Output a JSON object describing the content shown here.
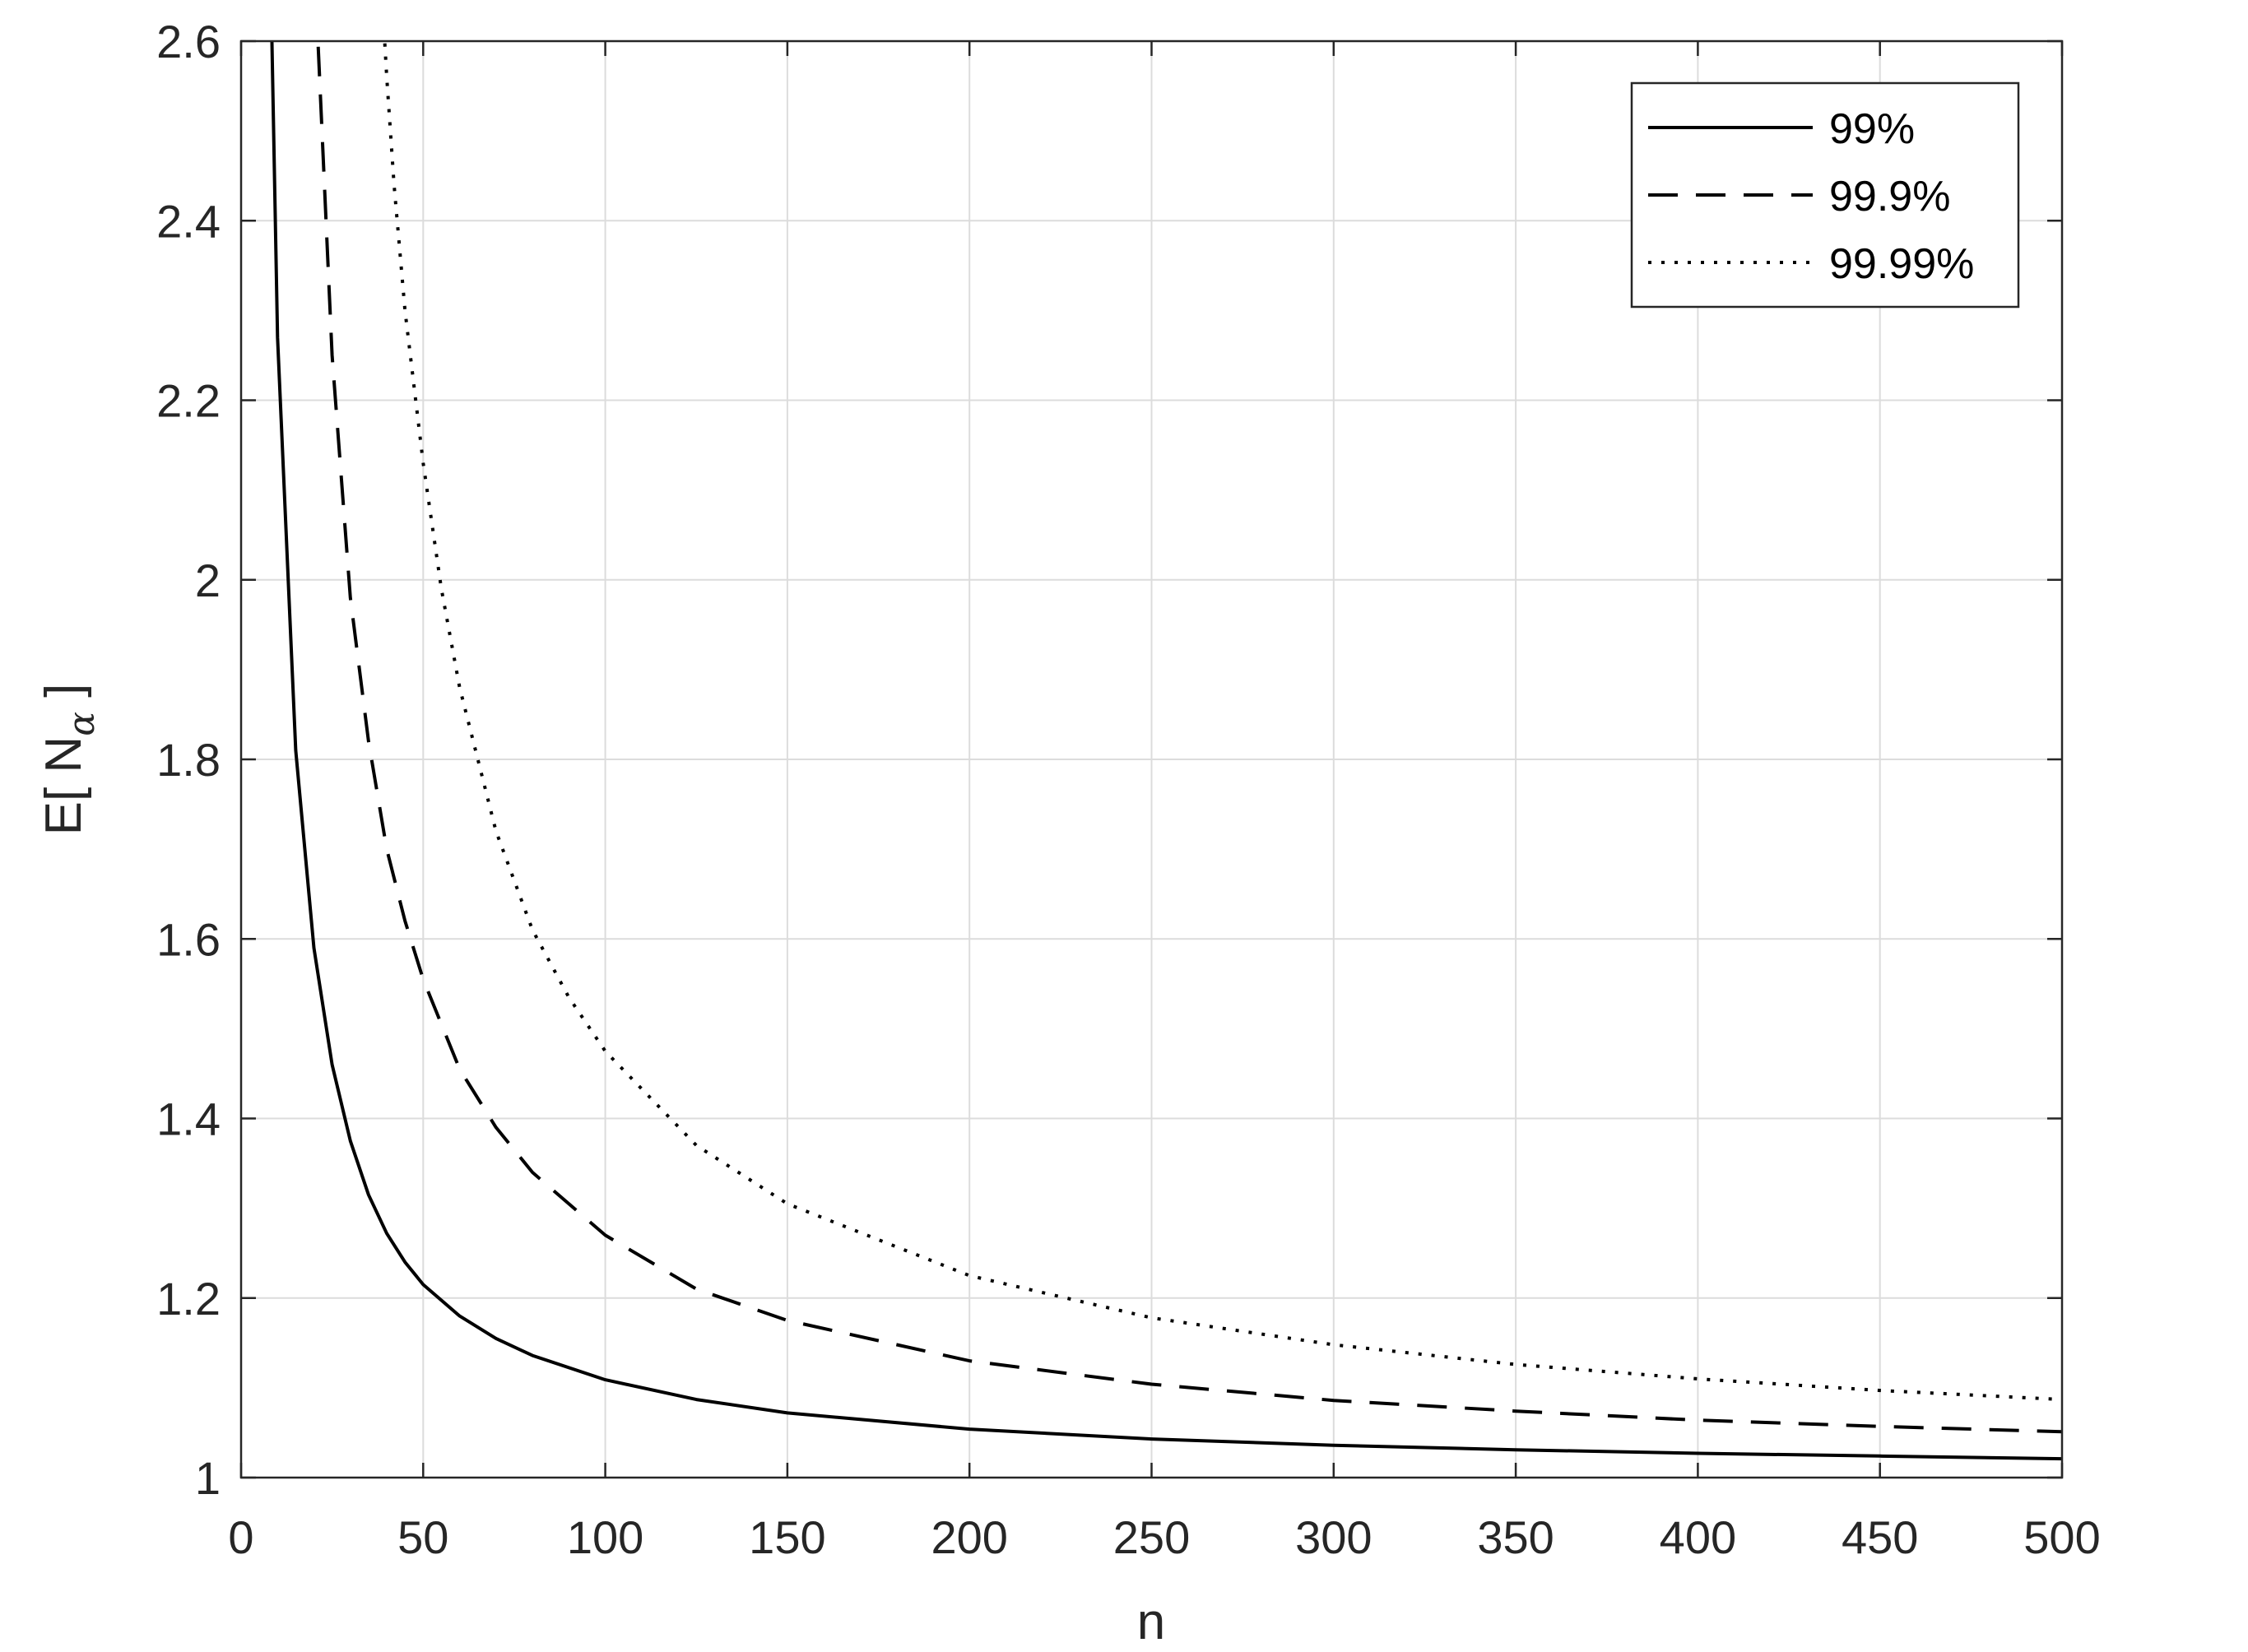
{
  "chart_data": {
    "type": "line",
    "title": "",
    "xlabel": "n",
    "ylabel": {
      "main": "E[ N",
      "subscript": "α",
      "close": " ]"
    },
    "xlim": [
      0,
      500
    ],
    "ylim": [
      1,
      2.6
    ],
    "xticks": [
      0,
      50,
      100,
      150,
      200,
      250,
      300,
      350,
      400,
      450,
      500
    ],
    "xtick_labels": [
      "0",
      "50",
      "100",
      "150",
      "200",
      "250",
      "300",
      "350",
      "400",
      "450",
      "500"
    ],
    "yticks": [
      1,
      1.2,
      1.4,
      1.6,
      1.8,
      2,
      2.2,
      2.4,
      2.6
    ],
    "ytick_labels": [
      "1",
      "1.2",
      "1.4",
      "1.6",
      "1.8",
      "2",
      "2.2",
      "2.4",
      "2.6"
    ],
    "grid": true,
    "legend_position": "top-right",
    "series": [
      {
        "name": "99%",
        "style": "solid",
        "x": [
          8,
          10,
          15,
          20,
          25,
          30,
          35,
          40,
          45,
          50,
          60,
          70,
          80,
          100,
          125,
          150,
          200,
          250,
          300,
          350,
          400,
          450,
          500
        ],
        "y": [
          2.7,
          2.27,
          1.81,
          1.59,
          1.46,
          1.375,
          1.315,
          1.272,
          1.24,
          1.215,
          1.18,
          1.155,
          1.136,
          1.109,
          1.087,
          1.072,
          1.054,
          1.043,
          1.036,
          1.031,
          1.027,
          1.024,
          1.021
        ]
      },
      {
        "name": "99.9%",
        "style": "dashed",
        "x": [
          20,
          25,
          30,
          35,
          40,
          45,
          50,
          60,
          70,
          80,
          100,
          125,
          150,
          200,
          250,
          300,
          350,
          400,
          450,
          500
        ],
        "y": [
          2.7,
          2.25,
          1.98,
          1.82,
          1.7,
          1.62,
          1.555,
          1.455,
          1.39,
          1.34,
          1.27,
          1.21,
          1.175,
          1.13,
          1.104,
          1.086,
          1.074,
          1.064,
          1.057,
          1.051
        ]
      },
      {
        "name": "99.99%",
        "style": "dotted",
        "x": [
          38,
          40,
          42,
          45,
          50,
          55,
          60,
          70,
          80,
          90,
          100,
          125,
          150,
          200,
          250,
          300,
          350,
          400,
          450,
          500
        ],
        "y": [
          2.7,
          2.56,
          2.44,
          2.3,
          2.13,
          1.99,
          1.88,
          1.72,
          1.61,
          1.535,
          1.475,
          1.37,
          1.305,
          1.225,
          1.178,
          1.148,
          1.126,
          1.11,
          1.097,
          1.087
        ]
      }
    ]
  }
}
